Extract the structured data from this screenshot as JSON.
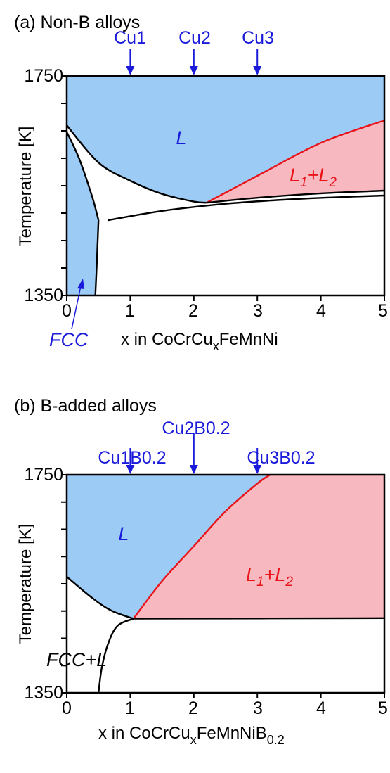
{
  "colors": {
    "liquid_fill": "#9ccbf5",
    "miscibility_fill": "#f8b8c0",
    "red_line": "#e8141a",
    "annotation_blue": "#1a1adb",
    "axis": "#000000"
  },
  "chart_data": [
    {
      "type": "area",
      "panel_label": "(a) Non-B alloys",
      "xlabel_prefix": "x in CoCrCu",
      "xlabel_sub1": "x",
      "xlabel_mid": "FeMnNi",
      "xlabel_sub2": "",
      "ylabel": "Temperature [K]",
      "xlim": [
        0,
        5
      ],
      "ylim": [
        1350,
        1750
      ],
      "x_ticks": [
        "0",
        "1",
        "2",
        "3",
        "4",
        "5"
      ],
      "y_tick_labels": [
        "1750",
        "1350"
      ],
      "arrows": [
        {
          "label": "Cu1",
          "x": 1
        },
        {
          "label": "Cu2",
          "x": 2
        },
        {
          "label": "Cu3",
          "x": 3
        }
      ],
      "regions": {
        "liquid": {
          "label": "L",
          "at": [
            1.73,
            1667
          ]
        },
        "miscibility": {
          "label_main": "L",
          "label_sub1": "1",
          "label_plus": "+L",
          "label_sub2": "2",
          "at": [
            3.6,
            1605
          ]
        },
        "fcc": {
          "label": "FCC"
        }
      },
      "series": [
        {
          "points": [
            [
              0,
              1660
            ],
            [
              0.5,
              1592
            ],
            [
              1,
              1559
            ],
            [
              1.5,
              1535
            ],
            [
              2.0,
              1521
            ],
            [
              2.2,
              1519
            ]
          ]
        },
        {
          "points": [
            [
              2.2,
              1519
            ],
            [
              3,
              1568
            ],
            [
              4,
              1628
            ],
            [
              5,
              1669
            ]
          ]
        },
        {
          "points": [
            [
              2.2,
              1519
            ],
            [
              3,
              1528
            ],
            [
              4,
              1536
            ],
            [
              5,
              1541
            ]
          ]
        },
        {
          "points": [
            [
              0.65,
              1487
            ],
            [
              1.5,
              1504
            ],
            [
              2.5,
              1517
            ],
            [
              3.5,
              1525
            ],
            [
              4.5,
              1530
            ],
            [
              5,
              1532
            ]
          ]
        },
        {
          "points": [
            [
              0,
              1648
            ],
            [
              0.2,
              1598
            ],
            [
              0.4,
              1530
            ],
            [
              0.5,
              1487
            ]
          ]
        },
        {
          "points": [
            [
              0.5,
              1487
            ],
            [
              0.47,
              1400
            ],
            [
              0.45,
              1350
            ]
          ]
        }
      ]
    },
    {
      "type": "area",
      "panel_label": "(b) B-added alloys",
      "xlabel_prefix": "x in CoCrCu",
      "xlabel_sub1": "x",
      "xlabel_mid": "FeMnNiB",
      "xlabel_sub2": "0.2",
      "ylabel": "Temperature [K]",
      "xlim": [
        0,
        5
      ],
      "ylim": [
        1350,
        1750
      ],
      "x_ticks": [
        "0",
        "1",
        "2",
        "3",
        "4",
        "5"
      ],
      "y_tick_labels": [
        "1750",
        "1350"
      ],
      "arrows": [
        {
          "label": "Cu1B0.2",
          "x": 1
        },
        {
          "label": "Cu2B0.2",
          "x": 2
        },
        {
          "label": "Cu3B0.2",
          "x": 3
        }
      ],
      "regions": {
        "liquid": {
          "label": "L",
          "at": [
            0.9,
            1680
          ]
        },
        "miscibility": {
          "label_main": "L",
          "label_sub1": "1",
          "label_plus": "+L",
          "label_sub2": "2",
          "at": [
            3.55,
            1610
          ]
        },
        "fcc": {
          "label": "FCC+L"
        }
      },
      "series": [
        {
          "points": [
            [
              0,
              1563
            ],
            [
              0.4,
              1524
            ],
            [
              0.7,
              1501
            ],
            [
              1.05,
              1486
            ]
          ]
        },
        {
          "points": [
            [
              1.05,
              1486
            ],
            [
              1.5,
              1555
            ],
            [
              2,
              1619
            ],
            [
              2.5,
              1683
            ],
            [
              3,
              1734
            ],
            [
              3.2,
              1750
            ]
          ]
        },
        {
          "points": [
            [
              1.05,
              1486
            ],
            [
              5,
              1487
            ]
          ]
        },
        {
          "points": [
            [
              1.05,
              1486
            ],
            [
              0.8,
              1473
            ],
            [
              0.65,
              1440
            ],
            [
              0.55,
              1395
            ],
            [
              0.5,
              1350
            ]
          ]
        }
      ]
    }
  ]
}
